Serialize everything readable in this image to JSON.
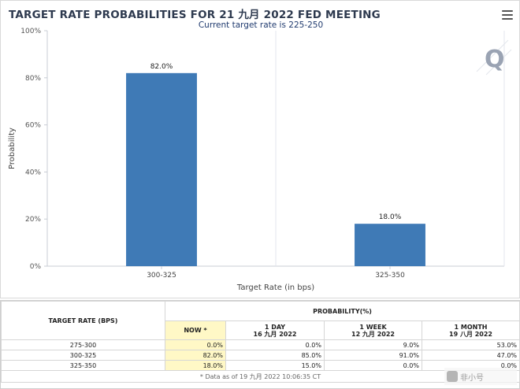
{
  "chart": {
    "title": "TARGET RATE PROBABILITIES FOR 21 九月 2022 FED MEETING",
    "subtitle": "Current target rate is 225-250",
    "menu_icon": "hamburger-menu-icon",
    "logo_icon": "q-logo-icon",
    "bar_color": "#3f7ab6"
  },
  "chart_data": {
    "type": "bar",
    "categories": [
      "300-325",
      "325-350"
    ],
    "values": [
      82.0,
      18.0
    ],
    "data_labels": [
      "82.0%",
      "18.0%"
    ],
    "title": "TARGET RATE PROBABILITIES FOR 21 九月 2022 FED MEETING",
    "subtitle": "Current target rate is 225-250",
    "xlabel": "Target Rate (in bps)",
    "ylabel": "Probability",
    "ylim": [
      0,
      100
    ],
    "yticks": [
      0,
      20,
      40,
      60,
      80,
      100
    ],
    "ytick_labels": [
      "0%",
      "20%",
      "40%",
      "60%",
      "80%",
      "100%"
    ],
    "grid": "vertical category dividers",
    "legend": "none"
  },
  "table": {
    "rate_header": "TARGET RATE (BPS)",
    "prob_header": "PROBABILITY(%)",
    "columns": [
      {
        "line1": "NOW *",
        "line2": ""
      },
      {
        "line1": "1 DAY",
        "line2": "16 九月 2022"
      },
      {
        "line1": "1 WEEK",
        "line2": "12 九月 2022"
      },
      {
        "line1": "1 MONTH",
        "line2": "19 八月 2022"
      }
    ],
    "rows": [
      {
        "rate": "275-300",
        "values": [
          "0.0%",
          "0.0%",
          "9.0%",
          "53.0%"
        ]
      },
      {
        "rate": "300-325",
        "values": [
          "82.0%",
          "85.0%",
          "91.0%",
          "47.0%"
        ]
      },
      {
        "rate": "325-350",
        "values": [
          "18.0%",
          "15.0%",
          "0.0%",
          "0.0%"
        ]
      }
    ],
    "footnote": "* Data as of 19 九月 2022 10:06:35 CT",
    "watermark": "非小号"
  }
}
